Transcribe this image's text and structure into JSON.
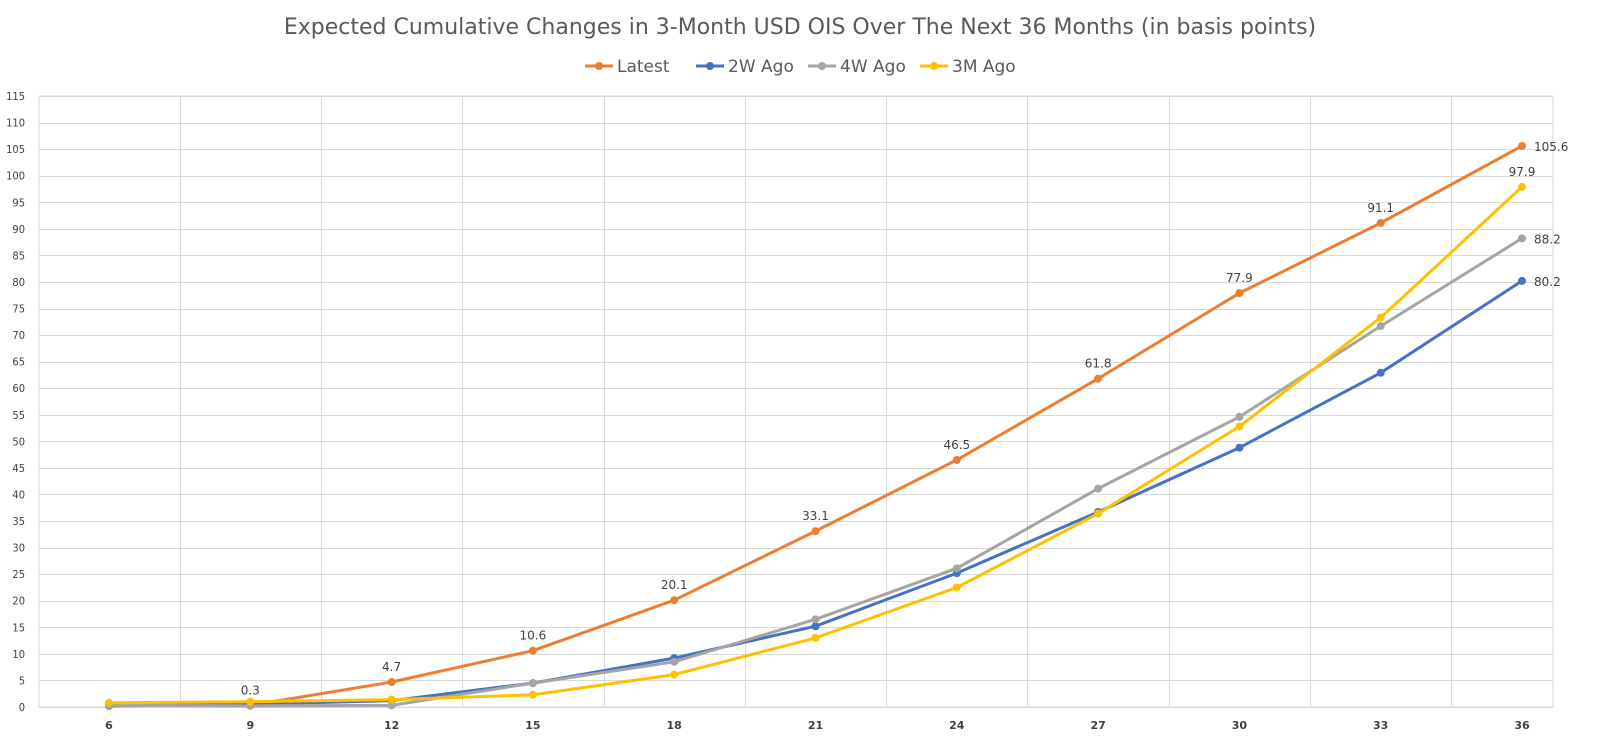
{
  "chart_data": {
    "type": "line",
    "title": "Expected Cumulative Changes in 3-Month USD OIS Over The Next 36 Months (in basis points)",
    "xlabel": "",
    "ylabel": "",
    "x": [
      6,
      9,
      12,
      15,
      18,
      21,
      24,
      27,
      30,
      33,
      36
    ],
    "ylim": [
      0,
      115
    ],
    "yticks": [
      0,
      5,
      10,
      15,
      20,
      25,
      30,
      35,
      40,
      45,
      50,
      55,
      60,
      65,
      70,
      75,
      80,
      85,
      90,
      95,
      100,
      105,
      110,
      115
    ],
    "grid": true,
    "legend_position": "top",
    "series": [
      {
        "name": "Latest",
        "color": "#ED7D31",
        "values": [
          0.5,
          0.3,
          4.7,
          10.6,
          20.1,
          33.1,
          46.5,
          61.8,
          77.9,
          91.1,
          105.6
        ],
        "labels": [
          "",
          "0.3",
          "4.7",
          "10.6",
          "20.1",
          "33.1",
          "46.5",
          "61.8",
          "77.9",
          "91.1",
          "105.6"
        ]
      },
      {
        "name": "2W Ago",
        "color": "#4472C4",
        "values": [
          0.2,
          0.5,
          1.2,
          4.5,
          9.2,
          15.2,
          25.2,
          36.7,
          48.8,
          62.9,
          80.2
        ],
        "labels": [
          "",
          "",
          "",
          "",
          "",
          "",
          "",
          "",
          "",
          "",
          "80.2"
        ]
      },
      {
        "name": "4W Ago",
        "color": "#A5A5A5",
        "values": [
          0.3,
          0.2,
          0.3,
          4.5,
          8.5,
          16.5,
          26.1,
          41.1,
          54.6,
          71.7,
          88.2
        ],
        "labels": [
          "",
          "",
          "",
          "",
          "",
          "",
          "",
          "",
          "",
          "",
          "88.2"
        ]
      },
      {
        "name": "3M Ago",
        "color": "#FFC000",
        "values": [
          0.8,
          1.0,
          1.4,
          2.3,
          6.1,
          13.0,
          22.5,
          36.4,
          52.8,
          73.3,
          97.9
        ],
        "labels": [
          "",
          "",
          "",
          "",
          "",
          "",
          "",
          "",
          "",
          "",
          "97.9"
        ]
      }
    ]
  }
}
